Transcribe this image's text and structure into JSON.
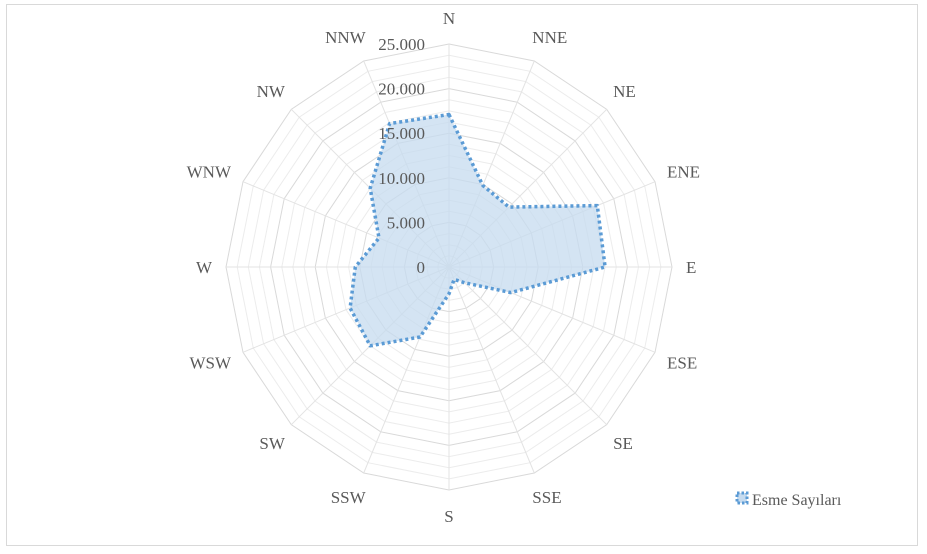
{
  "chart_data": {
    "type": "radar",
    "categories": [
      "N",
      "NNE",
      "NE",
      "ENE",
      "E",
      "ESE",
      "SE",
      "SSE",
      "S",
      "SSW",
      "SW",
      "WSW",
      "W",
      "WNW",
      "NW",
      "NNW"
    ],
    "series": [
      {
        "name": "Esme Sayıları",
        "values": [
          17100,
          9900,
          9500,
          18000,
          17500,
          7500,
          2500,
          1500,
          3000,
          8500,
          12500,
          12000,
          10500,
          8500,
          12500,
          17400
        ],
        "line_color": "#5b9bd5",
        "fill_color": "#c6dbef"
      }
    ],
    "ticks": [
      0,
      5000,
      10000,
      15000,
      20000,
      25000
    ],
    "tick_labels": [
      "0",
      "5.000",
      "10.000",
      "15.000",
      "20.000",
      "25.000"
    ],
    "rmax": 25000,
    "minor_rings_per_major": 4,
    "grid": true,
    "legend_position": "bottom-right"
  }
}
